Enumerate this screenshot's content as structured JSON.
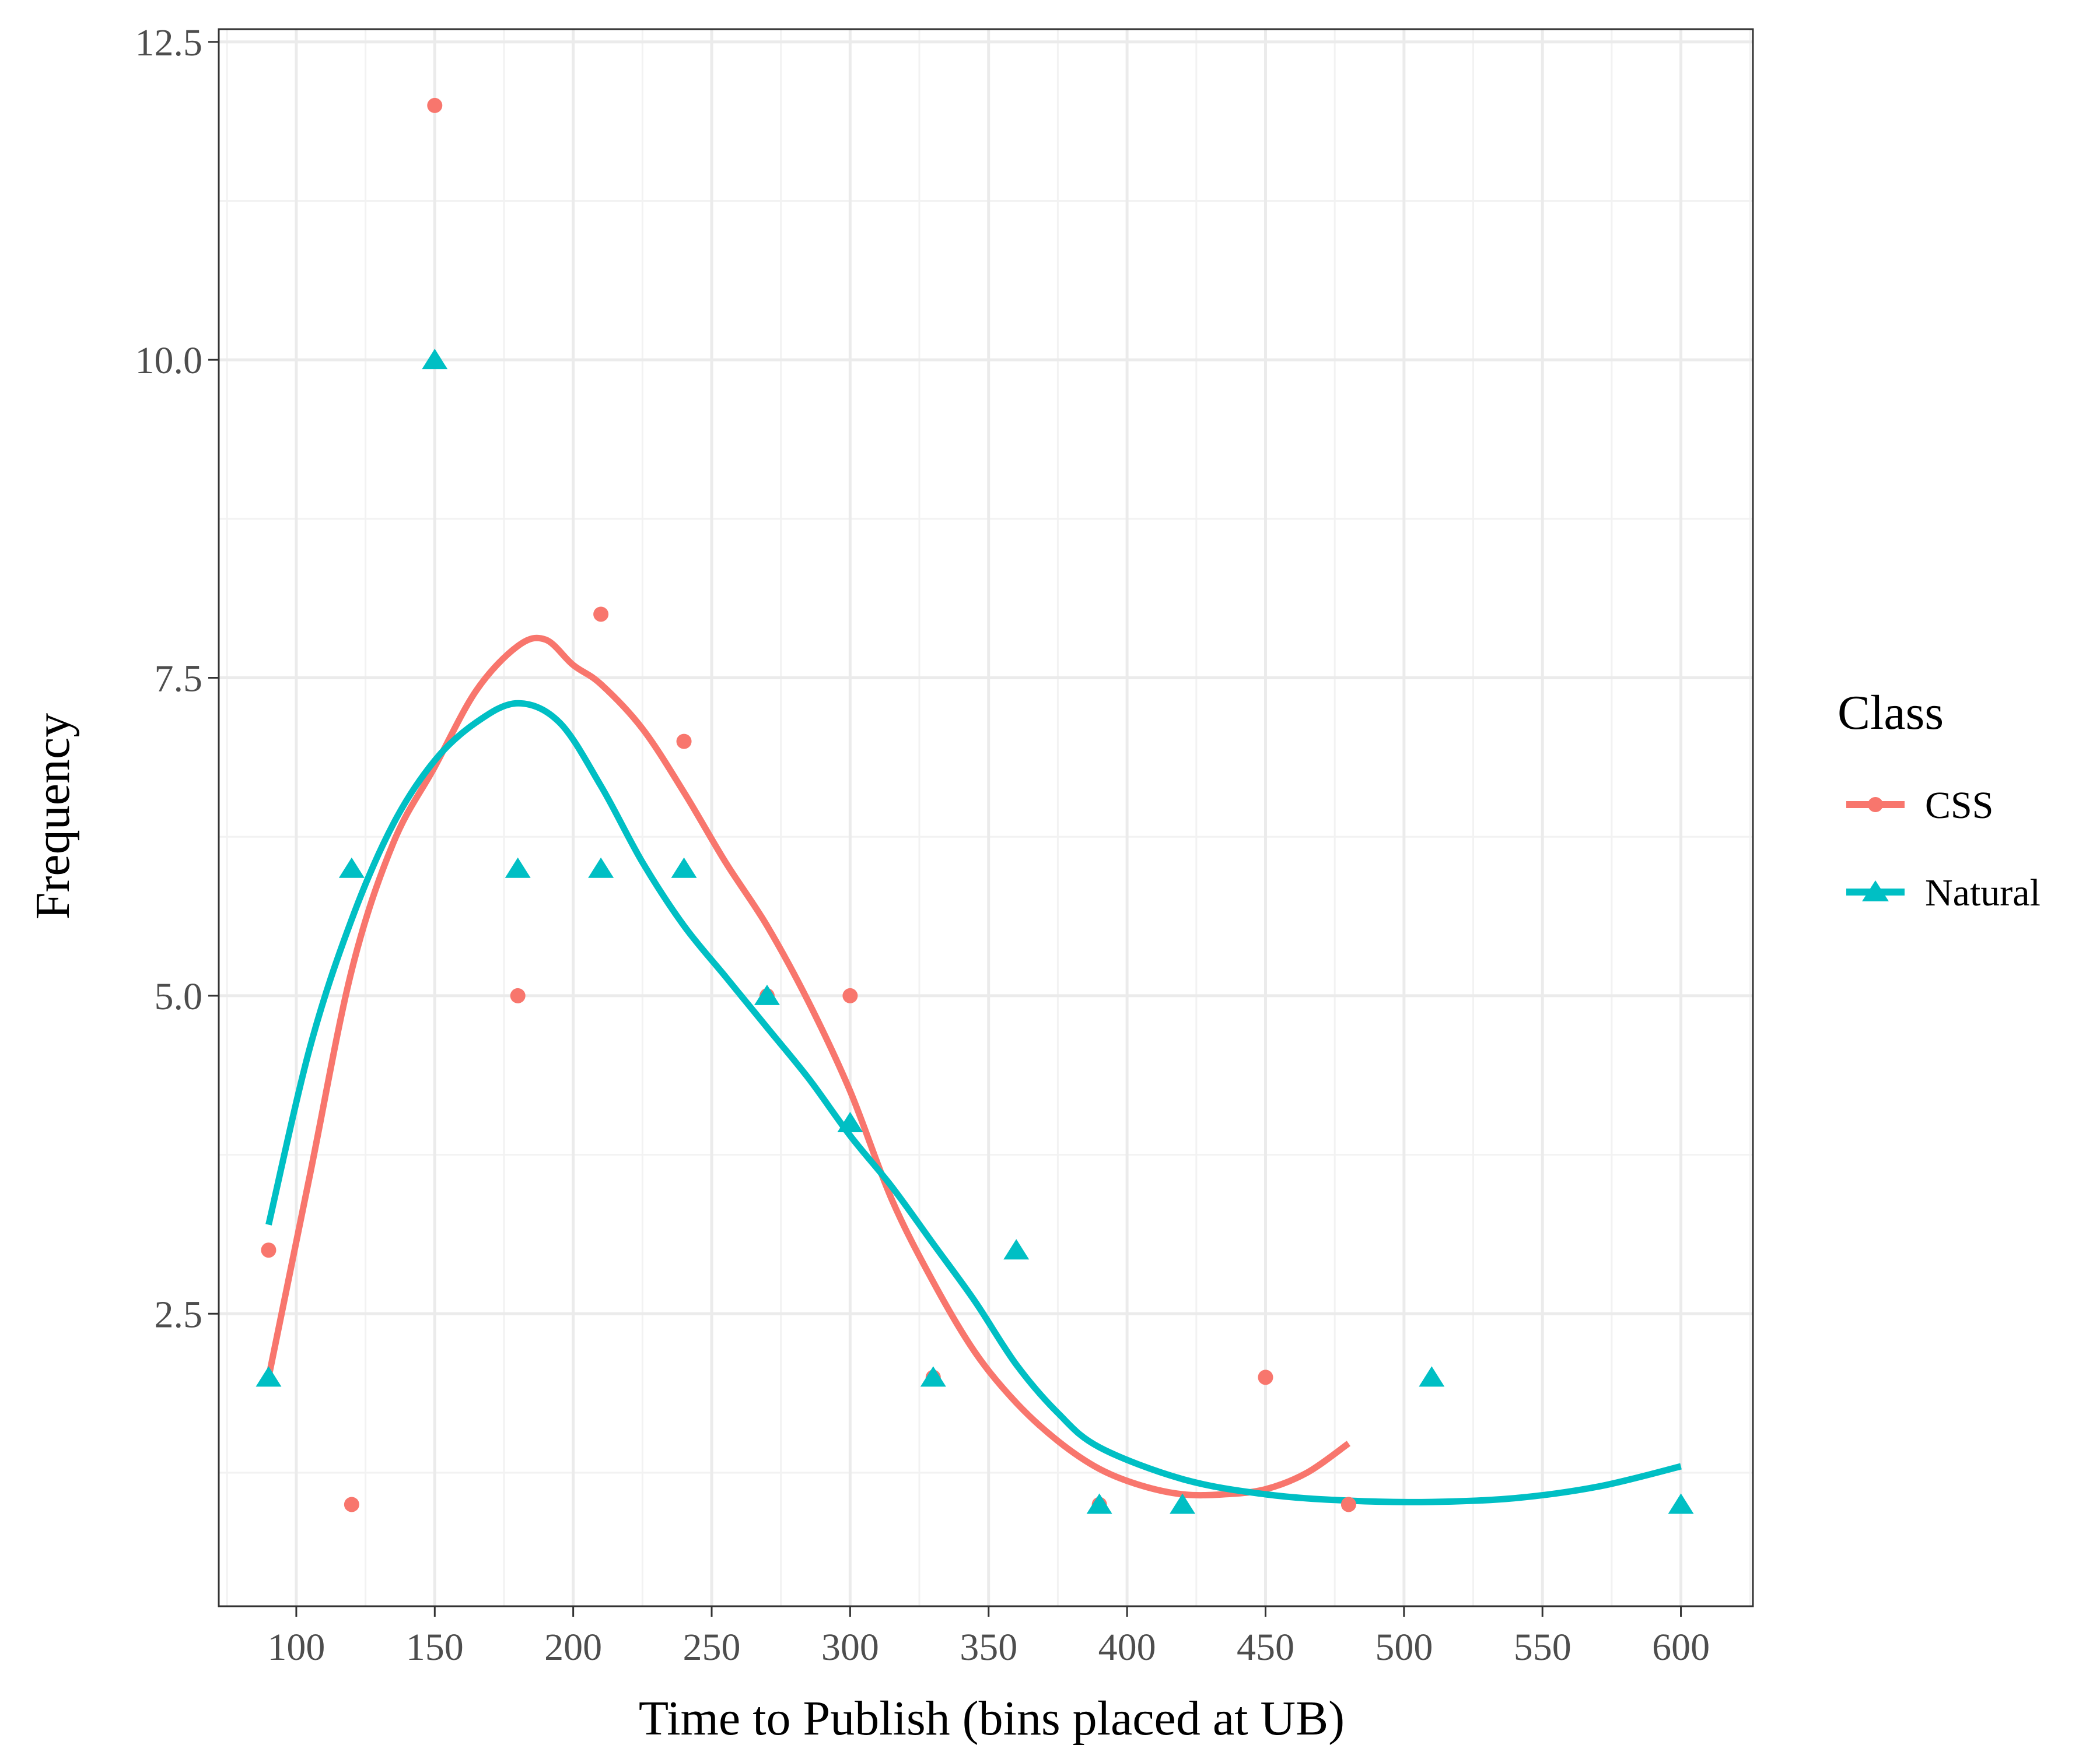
{
  "chart_data": {
    "type": "scatter",
    "xlabel": "Time to Publish (bins placed at UB)",
    "ylabel": "Frequency",
    "xlim": [
      72,
      626
    ],
    "ylim": [
      0.2,
      12.6
    ],
    "x_ticks": [
      "100",
      "150",
      "200",
      "250",
      "300",
      "350",
      "400",
      "450",
      "500",
      "550",
      "600"
    ],
    "y_ticks": [
      "2.5",
      "5.0",
      "7.5",
      "10.0",
      "12.5"
    ],
    "legend": {
      "title": "Class",
      "position": "right"
    },
    "grid": true,
    "series": [
      {
        "name": "CSS",
        "color": "#F8766D",
        "marker": "circle",
        "points": [
          [
            90,
            3
          ],
          [
            120,
            1
          ],
          [
            150,
            12
          ],
          [
            180,
            5
          ],
          [
            210,
            8
          ],
          [
            240,
            7
          ],
          [
            270,
            5
          ],
          [
            300,
            5
          ],
          [
            330,
            2
          ],
          [
            390,
            1
          ],
          [
            450,
            2
          ],
          [
            480,
            1
          ]
        ],
        "smooth": [
          [
            90,
            2.0
          ],
          [
            105,
            3.6
          ],
          [
            120,
            5.2
          ],
          [
            135,
            6.2
          ],
          [
            150,
            6.8
          ],
          [
            165,
            7.4
          ],
          [
            180,
            7.75
          ],
          [
            190,
            7.8
          ],
          [
            200,
            7.6
          ],
          [
            210,
            7.45
          ],
          [
            225,
            7.1
          ],
          [
            240,
            6.6
          ],
          [
            255,
            6.05
          ],
          [
            270,
            5.55
          ],
          [
            285,
            4.95
          ],
          [
            300,
            4.25
          ],
          [
            315,
            3.4
          ],
          [
            330,
            2.75
          ],
          [
            345,
            2.2
          ],
          [
            360,
            1.8
          ],
          [
            375,
            1.5
          ],
          [
            390,
            1.28
          ],
          [
            405,
            1.15
          ],
          [
            420,
            1.08
          ],
          [
            435,
            1.08
          ],
          [
            450,
            1.12
          ],
          [
            465,
            1.25
          ],
          [
            480,
            1.48
          ]
        ]
      },
      {
        "name": "Natural",
        "color": "#00BFC4",
        "marker": "triangle",
        "points": [
          [
            90,
            2
          ],
          [
            120,
            6
          ],
          [
            150,
            10
          ],
          [
            180,
            6
          ],
          [
            210,
            6
          ],
          [
            240,
            6
          ],
          [
            270,
            5
          ],
          [
            300,
            4
          ],
          [
            330,
            2
          ],
          [
            360,
            3
          ],
          [
            390,
            1
          ],
          [
            420,
            1
          ],
          [
            510,
            2
          ],
          [
            600,
            1
          ]
        ],
        "smooth": [
          [
            90,
            3.2
          ],
          [
            105,
            4.6
          ],
          [
            120,
            5.6
          ],
          [
            135,
            6.35
          ],
          [
            150,
            6.85
          ],
          [
            165,
            7.15
          ],
          [
            180,
            7.3
          ],
          [
            195,
            7.15
          ],
          [
            210,
            6.65
          ],
          [
            225,
            6.05
          ],
          [
            240,
            5.55
          ],
          [
            255,
            5.15
          ],
          [
            270,
            4.75
          ],
          [
            285,
            4.35
          ],
          [
            300,
            3.9
          ],
          [
            315,
            3.5
          ],
          [
            330,
            3.05
          ],
          [
            345,
            2.6
          ],
          [
            360,
            2.1
          ],
          [
            375,
            1.72
          ],
          [
            390,
            1.45
          ],
          [
            420,
            1.2
          ],
          [
            450,
            1.08
          ],
          [
            480,
            1.03
          ],
          [
            510,
            1.02
          ],
          [
            540,
            1.05
          ],
          [
            570,
            1.14
          ],
          [
            600,
            1.3
          ]
        ]
      }
    ]
  }
}
